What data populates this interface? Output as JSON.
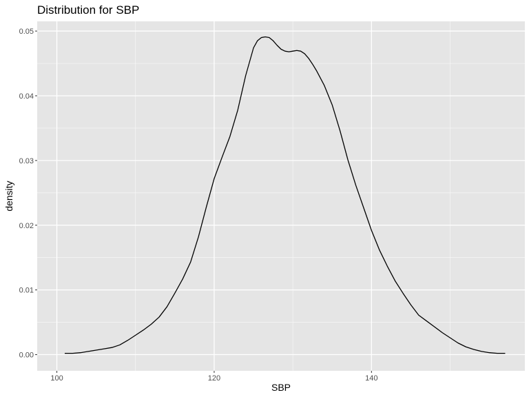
{
  "chart_data": {
    "type": "line",
    "title": "Distribution for SBP",
    "xlabel": "SBP",
    "ylabel": "density",
    "xlim": [
      97.5,
      159.5
    ],
    "ylim": [
      -0.0025,
      0.0515
    ],
    "x_ticks": [
      100,
      120,
      140
    ],
    "x_tick_labels": [
      "100",
      "120",
      "140"
    ],
    "x_minor_ticks": [
      110,
      130,
      150
    ],
    "y_ticks": [
      0.0,
      0.01,
      0.02,
      0.03,
      0.04,
      0.05
    ],
    "y_tick_labels": [
      "0.00",
      "0.01",
      "0.02",
      "0.03",
      "0.04",
      "0.05"
    ],
    "y_minor_ticks": [
      0.005,
      0.015,
      0.025,
      0.035,
      0.045
    ],
    "grid": true,
    "legend": "none",
    "colors": {
      "panel": "#e5e5e5",
      "grid": "#ffffff",
      "line": "#000000",
      "tick": "#333333"
    },
    "series": [
      {
        "x": [
          101,
          102,
          103,
          104,
          105,
          106,
          107,
          108,
          109,
          110,
          111,
          112,
          113,
          114,
          115,
          116,
          117,
          118,
          119,
          120,
          121,
          122,
          123,
          124,
          125,
          125.5,
          126,
          126.5,
          127,
          127.5,
          128,
          128.5,
          129,
          129.5,
          130,
          130.5,
          131,
          131.5,
          132,
          132.5,
          133,
          134,
          135,
          136,
          137,
          138,
          139,
          140,
          141,
          142,
          143,
          144,
          145,
          146,
          147,
          148,
          149,
          150,
          151,
          152,
          153,
          154,
          155,
          156,
          157
        ],
        "y": [
          0.0002,
          0.0002,
          0.0003,
          0.0005,
          0.0007,
          0.0009,
          0.0011,
          0.0015,
          0.0022,
          0.003,
          0.0038,
          0.0047,
          0.0058,
          0.0074,
          0.0095,
          0.0117,
          0.0143,
          0.0182,
          0.0228,
          0.0272,
          0.0305,
          0.0337,
          0.0378,
          0.0431,
          0.0474,
          0.0485,
          0.049,
          0.0491,
          0.049,
          0.0485,
          0.0478,
          0.0472,
          0.0469,
          0.0468,
          0.0469,
          0.047,
          0.0469,
          0.0465,
          0.0458,
          0.0449,
          0.0439,
          0.0416,
          0.0386,
          0.0346,
          0.0301,
          0.0262,
          0.0227,
          0.0192,
          0.0162,
          0.0137,
          0.0114,
          0.0095,
          0.0077,
          0.0061,
          0.0052,
          0.0043,
          0.0034,
          0.0026,
          0.0018,
          0.0012,
          0.0008,
          0.0005,
          0.0003,
          0.0002,
          0.0002
        ]
      }
    ]
  }
}
